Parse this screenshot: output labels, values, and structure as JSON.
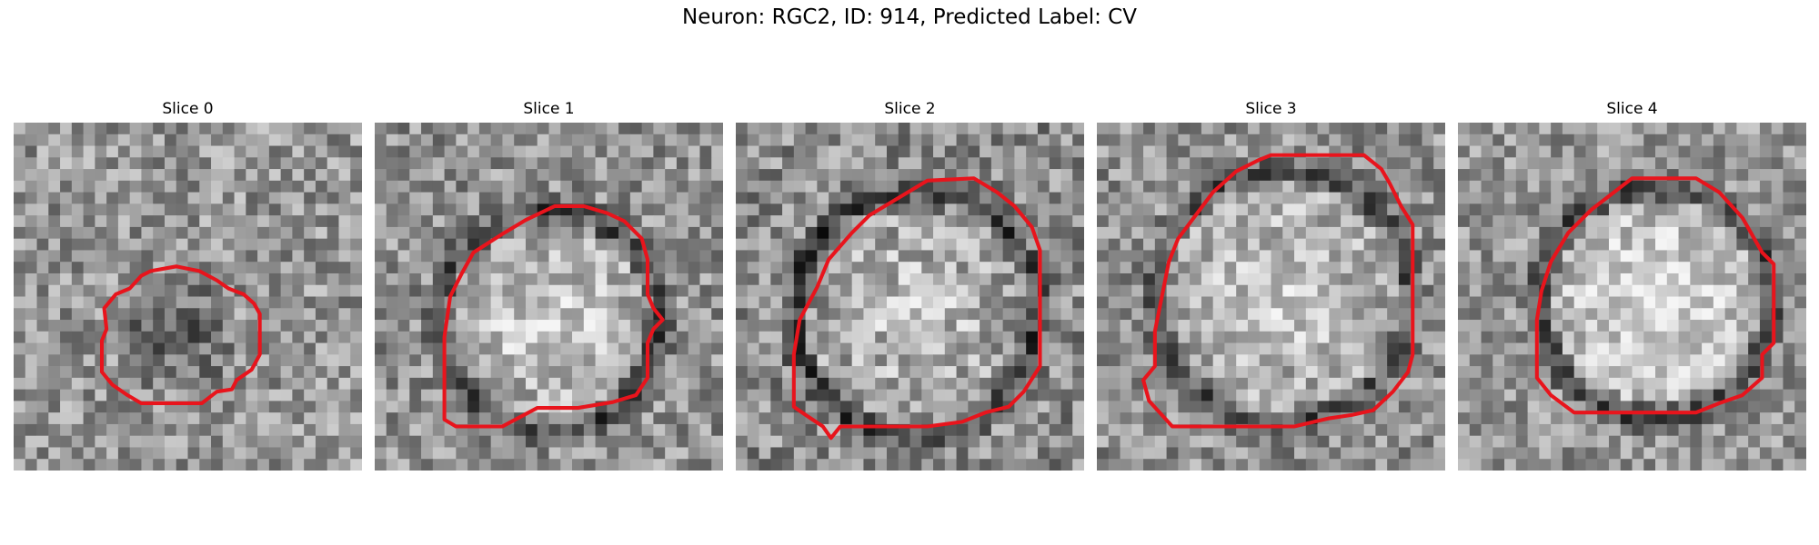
{
  "figure": {
    "title": "Neuron: RGC2, ID: 914, Predicted Label: CV",
    "contour_color": "#e8141c",
    "panels": [
      {
        "title": "Slice 0"
      },
      {
        "title": "Slice 1"
      },
      {
        "title": "Slice 2"
      },
      {
        "title": "Slice 3"
      },
      {
        "title": "Slice 4"
      }
    ]
  }
}
